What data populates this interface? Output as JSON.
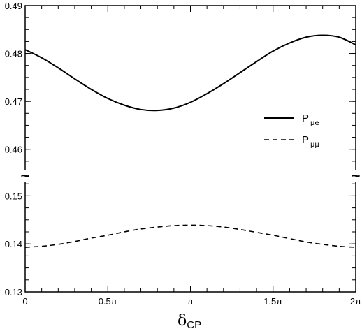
{
  "chart_data": {
    "type": "line",
    "xlabel_main": "δ",
    "xlabel_sub": "CP",
    "x_range": [
      0,
      2
    ],
    "x_ticks": [
      {
        "value": 0,
        "label": "0"
      },
      {
        "value": 0.5,
        "label": "0.5π"
      },
      {
        "value": 1,
        "label": "π"
      },
      {
        "value": 1.5,
        "label": "1.5π"
      },
      {
        "value": 2,
        "label": "2π"
      }
    ],
    "axis_break": true,
    "break_mark": "~",
    "upper_panel": {
      "ylim": [
        0.455,
        0.49
      ],
      "y_ticks": [
        "0.46",
        "0.47",
        "0.48",
        "0.49"
      ]
    },
    "lower_panel": {
      "ylim": [
        0.13,
        0.155
      ],
      "y_ticks": [
        "0.13",
        "0.14",
        "0.15"
      ]
    },
    "series": [
      {
        "name_main": "P",
        "name_sub": "μe",
        "style": "solid",
        "panel": "upper",
        "x": [
          0,
          0.1,
          0.2,
          0.3,
          0.4,
          0.5,
          0.6,
          0.7,
          0.8,
          0.9,
          1.0,
          1.1,
          1.2,
          1.3,
          1.4,
          1.5,
          1.6,
          1.7,
          1.8,
          1.9,
          2.0
        ],
        "y": [
          0.4808,
          0.4791,
          0.477,
          0.4747,
          0.4725,
          0.4706,
          0.4692,
          0.4683,
          0.4681,
          0.4686,
          0.4698,
          0.4716,
          0.4737,
          0.476,
          0.4783,
          0.4805,
          0.4822,
          0.4834,
          0.4838,
          0.4834,
          0.4818
        ]
      },
      {
        "name_main": "P",
        "name_sub": "μμ",
        "style": "dashed",
        "panel": "lower",
        "x": [
          0,
          0.1,
          0.2,
          0.3,
          0.4,
          0.5,
          0.6,
          0.7,
          0.8,
          0.9,
          1.0,
          1.1,
          1.2,
          1.3,
          1.4,
          1.5,
          1.6,
          1.7,
          1.8,
          1.9,
          2.0
        ],
        "y": [
          0.1393,
          0.1395,
          0.1399,
          0.1405,
          0.1412,
          0.1418,
          0.1425,
          0.1431,
          0.1435,
          0.1438,
          0.1439,
          0.1438,
          0.1435,
          0.143,
          0.1424,
          0.1418,
          0.1411,
          0.1404,
          0.1399,
          0.1395,
          0.1393
        ]
      }
    ],
    "legend_placement": "right",
    "grid": false
  }
}
